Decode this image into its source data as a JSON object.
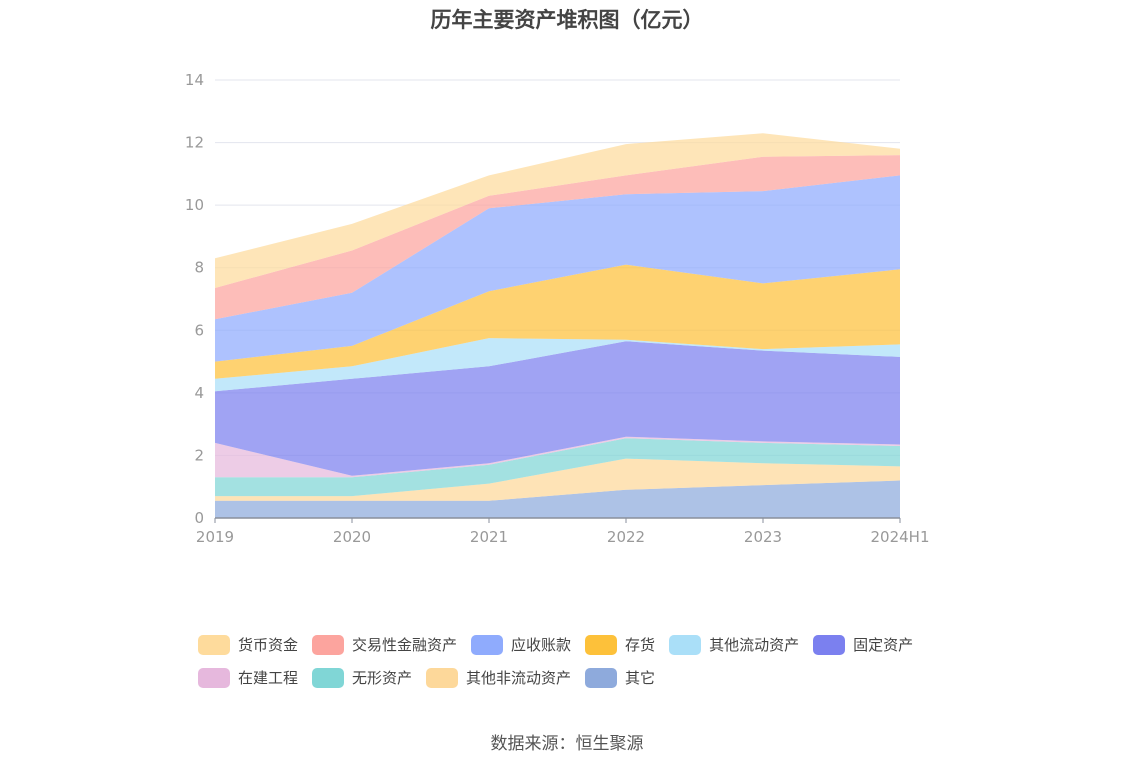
{
  "chart_data": {
    "type": "area",
    "stacked": true,
    "title": "历年主要资产堆积图（亿元）",
    "categories": [
      "2019",
      "2020",
      "2021",
      "2022",
      "2023",
      "2024H1"
    ],
    "ylim": [
      0,
      14
    ],
    "yticks": [
      "0",
      "2",
      "4",
      "6",
      "8",
      "10",
      "12",
      "14"
    ],
    "grid": true,
    "legend_position": "bottom",
    "series": [
      {
        "name": "其它",
        "color": "#8eaadc",
        "values": [
          0.55,
          0.55,
          0.55,
          0.9,
          1.05,
          1.2
        ]
      },
      {
        "name": "其他非流动资产",
        "color": "#fdd89a",
        "values": [
          0.15,
          0.15,
          0.55,
          1.0,
          0.7,
          0.45
        ]
      },
      {
        "name": "无形资产",
        "color": "#80d6d6",
        "values": [
          0.6,
          0.6,
          0.6,
          0.65,
          0.65,
          0.65
        ]
      },
      {
        "name": "在建工程",
        "color": "#e6b8dd",
        "values": [
          1.1,
          0.05,
          0.05,
          0.05,
          0.05,
          0.05
        ]
      },
      {
        "name": "固定资产",
        "color": "#7b80ef",
        "values": [
          1.65,
          3.1,
          3.1,
          3.05,
          2.9,
          2.8
        ]
      },
      {
        "name": "其他流动资产",
        "color": "#aadff8",
        "values": [
          0.4,
          0.4,
          0.9,
          0.05,
          0.05,
          0.4
        ]
      },
      {
        "name": "存货",
        "color": "#fdc13a",
        "values": [
          0.55,
          0.65,
          1.5,
          2.4,
          2.1,
          2.4
        ]
      },
      {
        "name": "应收账款",
        "color": "#8fabfd",
        "values": [
          1.35,
          1.7,
          2.65,
          2.25,
          2.95,
          3.0
        ]
      },
      {
        "name": "交易性金融资产",
        "color": "#fca49e",
        "values": [
          1.0,
          1.35,
          0.4,
          0.6,
          1.1,
          0.65
        ]
      },
      {
        "name": "货币资金",
        "color": "#fedb9c",
        "values": [
          0.95,
          0.85,
          0.65,
          1.0,
          0.75,
          0.2
        ]
      }
    ]
  },
  "legend": [
    {
      "label": "货币资金",
      "color": "#fedb9c"
    },
    {
      "label": "交易性金融资产",
      "color": "#fca49e"
    },
    {
      "label": "应收账款",
      "color": "#8fabfd"
    },
    {
      "label": "存货",
      "color": "#fdc13a"
    },
    {
      "label": "其他流动资产",
      "color": "#aadff8"
    },
    {
      "label": "固定资产",
      "color": "#7b80ef"
    },
    {
      "label": "在建工程",
      "color": "#e6b8dd"
    },
    {
      "label": "无形资产",
      "color": "#80d6d6"
    },
    {
      "label": "其他非流动资产",
      "color": "#fdd89a"
    },
    {
      "label": "其它",
      "color": "#8eaadc"
    }
  ],
  "source": "数据来源：恒生聚源"
}
